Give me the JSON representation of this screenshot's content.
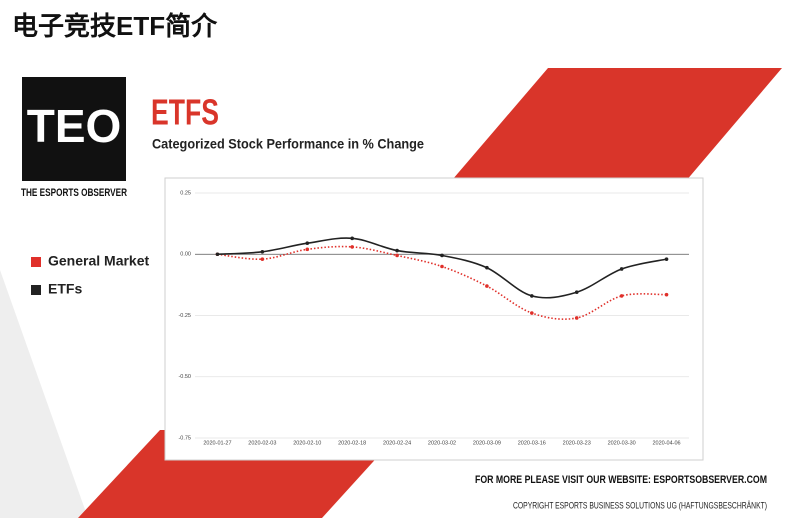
{
  "page_title": "电子竞技ETF简介",
  "logo": {
    "mark": "TEO",
    "name": "THE ESPORTS OBSERVER"
  },
  "footer": {
    "website": "FOR MORE PLEASE VISIT OUR WEBSITE: ESPORTSOBSERVER.COM",
    "copyright": "COPYRIGHT ESPORTS BUSINESS SOLUTIONS UG (HAFTUNGSBESCHRÄNKT)"
  },
  "chart_data": {
    "type": "line",
    "title": "ETFS",
    "subtitle": "Categorized Stock Performance in % Change",
    "categories": [
      "2020-01-27",
      "2020-02-03",
      "2020-02-10",
      "2020-02-18",
      "2020-02-24",
      "2020-03-02",
      "2020-03-09",
      "2020-03-16",
      "2020-03-23",
      "2020-03-30",
      "2020-04-06"
    ],
    "series": [
      {
        "name": "General Market",
        "color": "#e0302a",
        "dashed": true,
        "values": [
          0,
          -0.02,
          0.02,
          0.03,
          -0.005,
          -0.05,
          -0.13,
          -0.24,
          -0.26,
          -0.17,
          -0.165
        ]
      },
      {
        "name": "ETFs",
        "color": "#222222",
        "dashed": false,
        "values": [
          0,
          0.01,
          0.045,
          0.065,
          0.015,
          -0.005,
          -0.055,
          -0.17,
          -0.155,
          -0.06,
          -0.02
        ]
      }
    ],
    "ylim": [
      -0.75,
      0.25
    ],
    "yticks": [
      0.25,
      {
        "value": 0,
        "label": "0.00"
      },
      -0.25,
      {
        "value": -0.5,
        "label": "-0.50"
      },
      -0.75
    ],
    "grid": true,
    "legend": "left"
  }
}
